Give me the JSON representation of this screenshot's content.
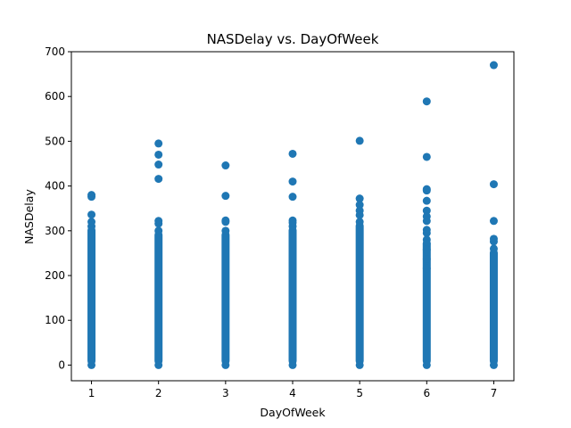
{
  "chart_data": {
    "type": "scatter",
    "title": "NASDelay vs. DayOfWeek",
    "xlabel": "DayOfWeek",
    "ylabel": "NASDelay",
    "xlim": [
      0.7,
      7.3
    ],
    "ylim": [
      -35,
      700
    ],
    "xticks": [
      1,
      2,
      3,
      4,
      5,
      6,
      7
    ],
    "yticks": [
      0,
      100,
      200,
      300,
      400,
      500,
      600,
      700
    ],
    "grid": false,
    "legend": "none",
    "marker_color": "#1f77b4",
    "dense_range_max": [
      310,
      300,
      300,
      310,
      320,
      280,
      260
    ],
    "series": [
      {
        "points": [
          {
            "x": 1,
            "y": 380
          },
          {
            "x": 1,
            "y": 376
          },
          {
            "x": 1,
            "y": 336
          },
          {
            "x": 1,
            "y": 320
          },
          {
            "x": 2,
            "y": 495
          },
          {
            "x": 2,
            "y": 470
          },
          {
            "x": 2,
            "y": 448
          },
          {
            "x": 2,
            "y": 416
          },
          {
            "x": 2,
            "y": 322
          },
          {
            "x": 2,
            "y": 316
          },
          {
            "x": 3,
            "y": 446
          },
          {
            "x": 3,
            "y": 378
          },
          {
            "x": 3,
            "y": 323
          },
          {
            "x": 3,
            "y": 320
          },
          {
            "x": 4,
            "y": 472
          },
          {
            "x": 4,
            "y": 410
          },
          {
            "x": 4,
            "y": 376
          },
          {
            "x": 4,
            "y": 323
          },
          {
            "x": 4,
            "y": 318
          },
          {
            "x": 5,
            "y": 501
          },
          {
            "x": 5,
            "y": 372
          },
          {
            "x": 5,
            "y": 358
          },
          {
            "x": 5,
            "y": 345
          },
          {
            "x": 5,
            "y": 335
          },
          {
            "x": 6,
            "y": 589
          },
          {
            "x": 6,
            "y": 465
          },
          {
            "x": 6,
            "y": 393
          },
          {
            "x": 6,
            "y": 390
          },
          {
            "x": 6,
            "y": 367
          },
          {
            "x": 6,
            "y": 345
          },
          {
            "x": 6,
            "y": 332
          },
          {
            "x": 6,
            "y": 322
          },
          {
            "x": 6,
            "y": 302
          },
          {
            "x": 6,
            "y": 295
          },
          {
            "x": 6,
            "y": 272
          },
          {
            "x": 6,
            "y": 258
          },
          {
            "x": 6,
            "y": 237
          },
          {
            "x": 6,
            "y": 216
          },
          {
            "x": 7,
            "y": 670
          },
          {
            "x": 7,
            "y": 404
          },
          {
            "x": 7,
            "y": 322
          },
          {
            "x": 7,
            "y": 282
          },
          {
            "x": 7,
            "y": 276
          }
        ]
      }
    ]
  }
}
